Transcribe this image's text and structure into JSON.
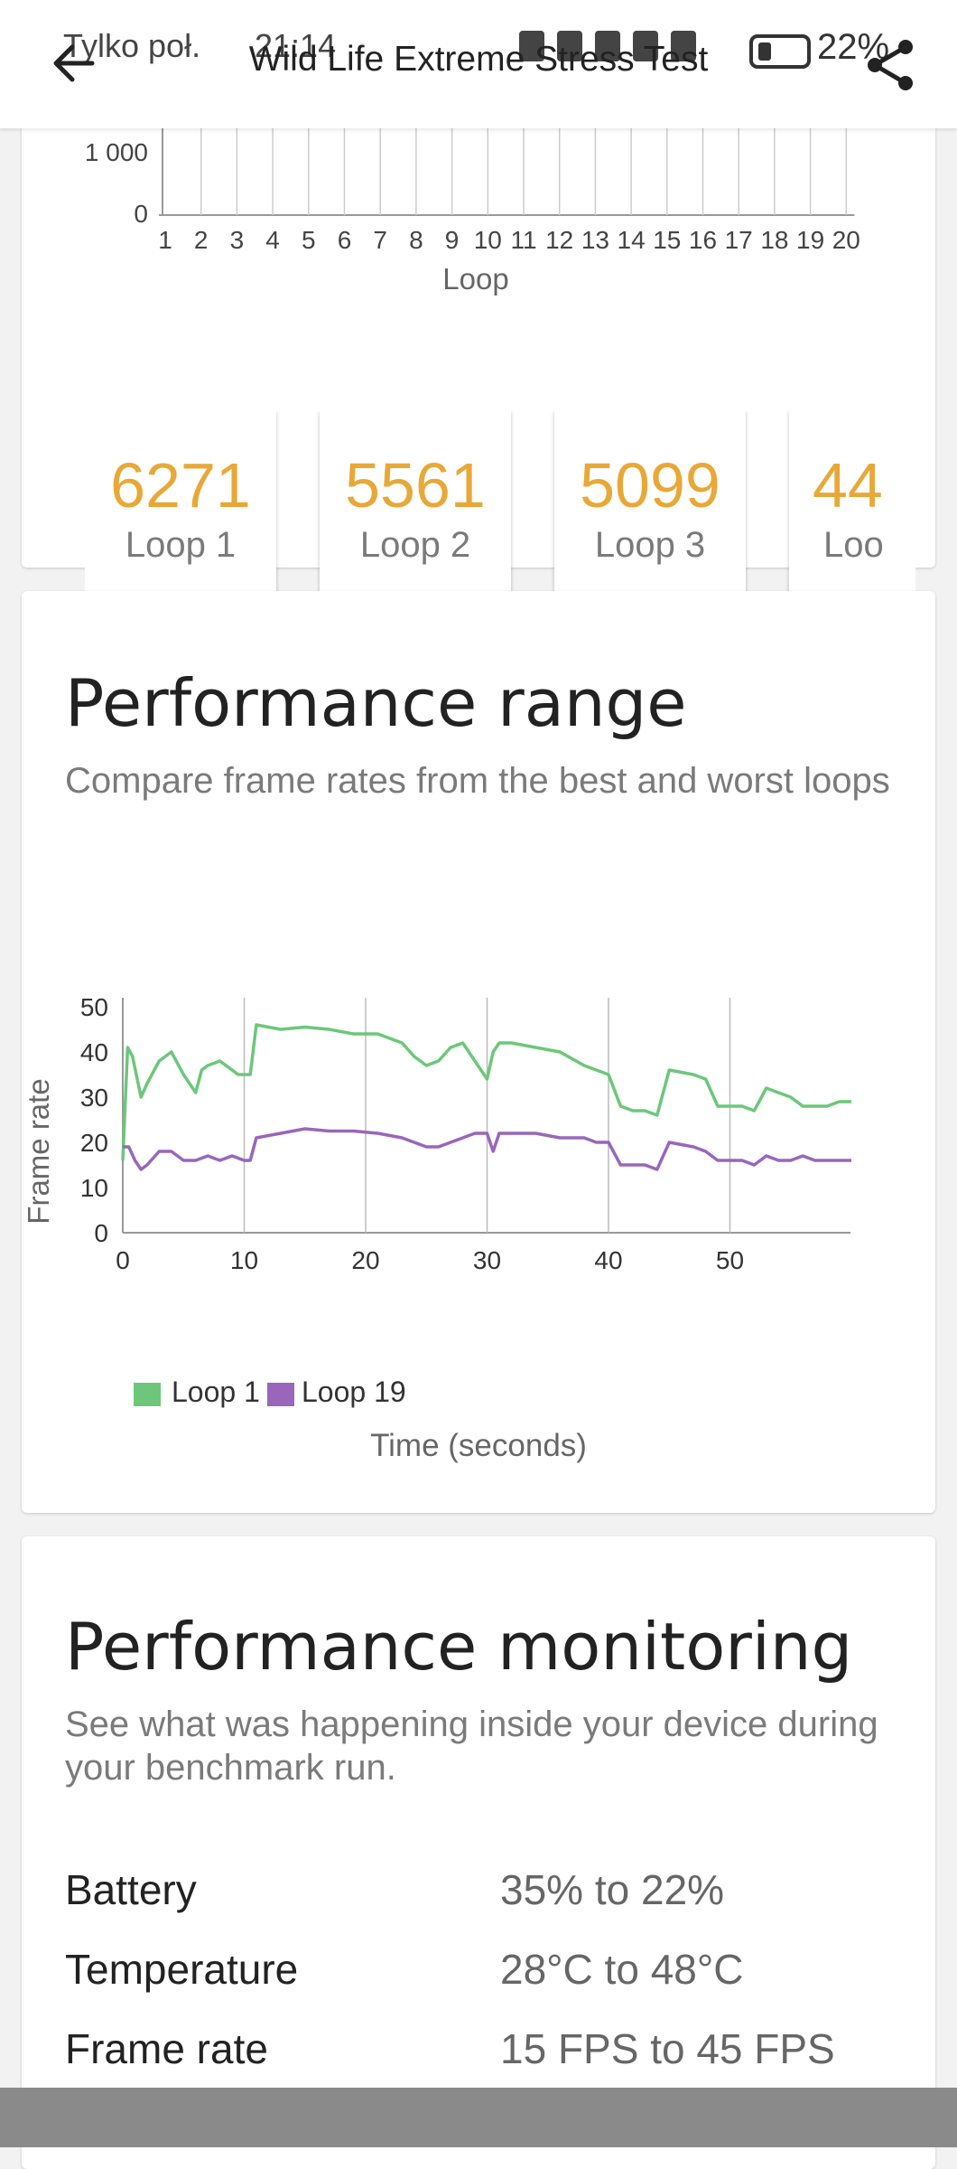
{
  "status": {
    "carrier": "Tylko poł.",
    "time": "21:14",
    "battery": "22%"
  },
  "header": {
    "title": "Wild Life Extreme Stress Test"
  },
  "score_chart": {
    "y_ticks": [
      "1 000",
      "0"
    ],
    "x_ticks": [
      "1",
      "2",
      "3",
      "4",
      "5",
      "6",
      "7",
      "8",
      "9",
      "10",
      "11",
      "12",
      "13",
      "14",
      "15",
      "16",
      "17",
      "18",
      "19",
      "20"
    ],
    "xlabel": "Loop"
  },
  "scores": [
    {
      "value": "6271",
      "label": "Loop 1"
    },
    {
      "value": "5561",
      "label": "Loop 2"
    },
    {
      "value": "5099",
      "label": "Loop 3"
    },
    {
      "value": "44",
      "label": "Loo"
    }
  ],
  "range": {
    "title": "Performance range",
    "subtitle": "Compare frame rates from the best and worst loops"
  },
  "monitoring": {
    "title": "Performance monitoring",
    "subtitle": "See what was happening inside your device during your benchmark run.",
    "rows": [
      {
        "label": "Battery",
        "value": "35% to 22%"
      },
      {
        "label": "Temperature",
        "value": "28°C to 48°C"
      },
      {
        "label": "Frame rate",
        "value": "15 FPS to 45 FPS"
      }
    ]
  },
  "colors": {
    "accent": "#e8a838",
    "loop1": "#6cc77a",
    "loop19": "#9966bb"
  },
  "chart_data": {
    "type": "line",
    "title": "",
    "xlabel": "Time (seconds)",
    "ylabel": "Frame rate",
    "xlim": [
      0,
      60
    ],
    "ylim": [
      0,
      50
    ],
    "x_ticks": [
      "0",
      "10",
      "20",
      "30",
      "40",
      "50"
    ],
    "y_ticks": [
      "50",
      "40",
      "30",
      "20",
      "10",
      "0"
    ],
    "legend": "bottom-left",
    "grid": true,
    "series": [
      {
        "name": "Loop 1",
        "x": [
          0,
          0.4,
          0.8,
          1.5,
          2,
          3,
          4,
          5,
          6,
          6.5,
          7,
          8,
          9,
          9.5,
          10,
          10.5,
          11,
          13,
          15,
          17,
          19,
          21,
          23,
          24,
          25,
          26,
          27,
          28,
          29,
          30,
          30.5,
          31,
          32,
          34,
          36,
          38,
          39,
          40,
          41,
          42,
          43,
          44,
          45,
          47,
          48,
          49,
          50,
          51,
          52,
          53,
          54,
          55,
          56,
          57,
          58,
          59,
          60
        ],
        "y": [
          16,
          41,
          39,
          30,
          33,
          38,
          40,
          35,
          31,
          36,
          37,
          38,
          36,
          35,
          35,
          35,
          46,
          45,
          45.5,
          45,
          44,
          44,
          42,
          39,
          37,
          38,
          41,
          42,
          38,
          34,
          40,
          42,
          42,
          41,
          40,
          37,
          36,
          35,
          28,
          27,
          27,
          26,
          36,
          35,
          34,
          28,
          28,
          28,
          27,
          32,
          31,
          30,
          28,
          28,
          28,
          29,
          29
        ]
      },
      {
        "name": "Loop 19",
        "x": [
          0,
          0.5,
          1,
          1.5,
          2,
          3,
          4,
          5,
          6,
          7,
          8,
          9,
          10,
          10.5,
          11,
          13,
          15,
          17,
          19,
          21,
          23,
          24,
          25,
          26,
          27,
          28,
          29,
          30,
          30.5,
          31,
          32,
          34,
          36,
          38,
          39,
          40,
          41,
          42,
          43,
          44,
          45,
          47,
          48,
          49,
          50,
          51,
          52,
          53,
          54,
          55,
          56,
          57,
          58,
          59,
          60
        ],
        "y": [
          19,
          19,
          16,
          14,
          15,
          18,
          18,
          16,
          16,
          17,
          16,
          17,
          16,
          16,
          21,
          22,
          23,
          22.5,
          22.5,
          22,
          21,
          20,
          19,
          19,
          20,
          21,
          22,
          22,
          18,
          22,
          22,
          22,
          21,
          21,
          20,
          20,
          15,
          15,
          15,
          14,
          20,
          19,
          18,
          16,
          16,
          16,
          15,
          17,
          16,
          16,
          17,
          16,
          16,
          16,
          16
        ]
      }
    ]
  }
}
